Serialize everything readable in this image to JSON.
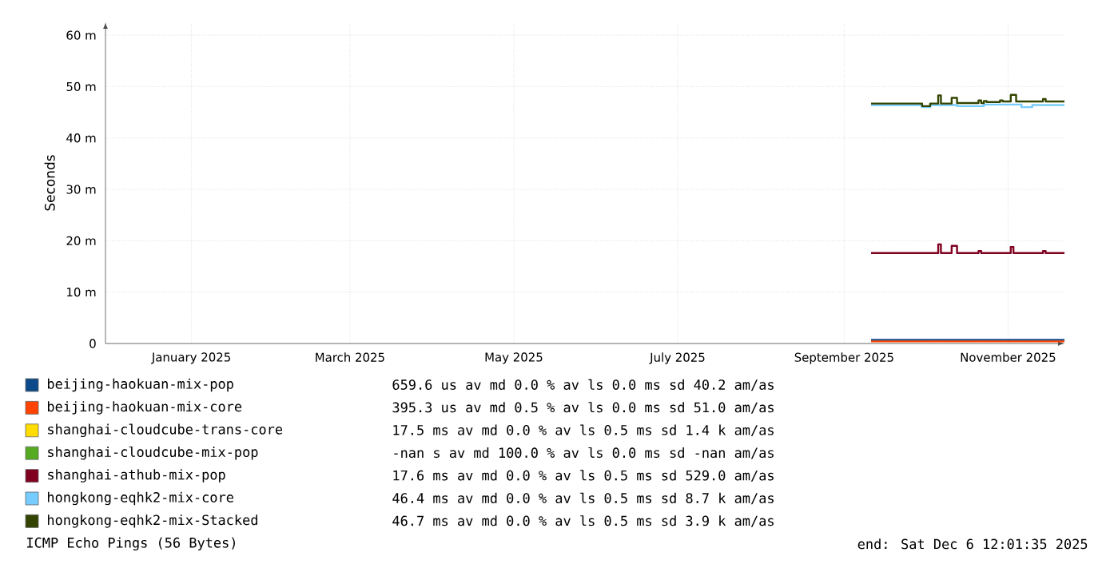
{
  "chart_data": {
    "type": "step",
    "ylabel": "Seconds",
    "xlim": [
      "2024-12-14",
      "2025-12-06"
    ],
    "xticks": [
      {
        "value": "2025-01-15",
        "label": "January 2025"
      },
      {
        "value": "2025-03-15",
        "label": "March 2025"
      },
      {
        "value": "2025-05-15",
        "label": "May 2025"
      },
      {
        "value": "2025-07-15",
        "label": "July 2025"
      },
      {
        "value": "2025-09-15",
        "label": "September 2025"
      },
      {
        "value": "2025-11-15",
        "label": "November 2025"
      }
    ],
    "ylim": [
      0,
      62.5
    ],
    "yticks": [
      {
        "value": 0,
        "label": "0"
      },
      {
        "value": 10,
        "label": "10 m"
      },
      {
        "value": 20,
        "label": "20 m"
      },
      {
        "value": 30,
        "label": "30 m"
      },
      {
        "value": 40,
        "label": "40 m"
      },
      {
        "value": 50,
        "label": "50 m"
      },
      {
        "value": 60,
        "label": "60 m"
      }
    ],
    "grid": true,
    "legend": "bottom",
    "series": [
      {
        "name": "beijing-haokuan-mix-pop",
        "color": "#0c4a8a",
        "x": [
          "2025-09-25",
          "2025-12-06"
        ],
        "values": [
          0.7,
          0.7
        ]
      },
      {
        "name": "beijing-haokuan-mix-core",
        "color": "#ff4400",
        "x": [
          "2025-09-25",
          "2025-12-06"
        ],
        "values": [
          0.4,
          0.4
        ]
      },
      {
        "name": "shanghai-cloudcube-trans-core",
        "color": "#ffdd00"
      },
      {
        "name": "shanghai-cloudcube-mix-pop",
        "color": "#55aa22"
      },
      {
        "name": "shanghai-athub-mix-pop",
        "color": "#800020",
        "x": [
          "2025-09-25",
          "2025-10-20",
          "2025-10-21",
          "2025-10-25",
          "2025-10-27",
          "2025-11-04",
          "2025-11-05",
          "2025-11-16",
          "2025-11-17",
          "2025-11-28",
          "2025-11-29",
          "2025-12-06"
        ],
        "values": [
          17.6,
          19.3,
          17.6,
          19.0,
          17.6,
          18.0,
          17.6,
          18.8,
          17.6,
          18.0,
          17.6,
          17.6
        ]
      },
      {
        "name": "hongkong-eqhk2-mix-core",
        "color": "#77ccff",
        "x": [
          "2025-09-25",
          "2025-10-14",
          "2025-10-17",
          "2025-10-27",
          "2025-11-06",
          "2025-11-20",
          "2025-11-24",
          "2025-12-06"
        ],
        "values": [
          46.4,
          46.0,
          46.4,
          46.2,
          46.5,
          46.0,
          46.4,
          46.4
        ]
      },
      {
        "name": "hongkong-eqhk2-mix-Stacked",
        "color": "#334400",
        "x": [
          "2025-09-25",
          "2025-10-14",
          "2025-10-17",
          "2025-10-20",
          "2025-10-21",
          "2025-10-25",
          "2025-10-27",
          "2025-11-04",
          "2025-11-05",
          "2025-11-06",
          "2025-11-07",
          "2025-11-12",
          "2025-11-13",
          "2025-11-16",
          "2025-11-18",
          "2025-11-28",
          "2025-11-29",
          "2025-12-06"
        ],
        "values": [
          46.7,
          46.2,
          46.7,
          48.3,
          46.7,
          47.8,
          46.8,
          47.3,
          46.8,
          47.2,
          47.0,
          47.3,
          47.1,
          48.4,
          47.1,
          47.6,
          47.1,
          47.1
        ]
      }
    ],
    "annotations": [
      "659.6 us av md 0.0 % av ls 0.0 ms sd 40.2 am/as",
      "395.3 us av md 0.5 % av ls 0.0 ms sd 51.0 am/as",
      "17.5 ms av md 0.0 % av ls 0.5 ms sd 1.4 k am/as",
      "-nan s av md 100.0 % av ls 0.0 ms sd -nan am/as",
      "17.6 ms av md 0.0 % av ls 0.5 ms sd 529.0 am/as",
      "46.4 ms av md 0.0 % av ls 0.5 ms sd 8.7 k am/as",
      "46.7 ms av md 0.0 % av ls 0.5 ms sd 3.9 k am/as",
      "ICMP Echo Pings (56 Bytes)",
      "end: Sat Dec 6 12:01:35 2025"
    ]
  }
}
